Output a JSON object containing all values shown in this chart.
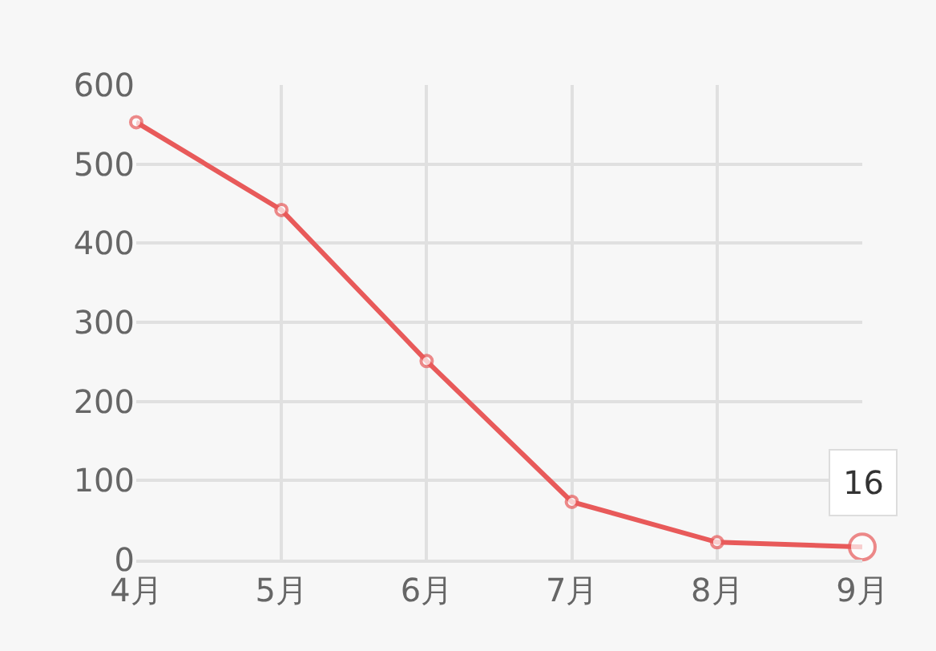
{
  "chart_data": {
    "type": "line",
    "categories": [
      "4月",
      "5月",
      "6月",
      "7月",
      "8月",
      "9月"
    ],
    "series": [
      {
        "color": "#e85a5a",
        "values": [
          553,
          442,
          251,
          73,
          22,
          16
        ],
        "value_labels": [
          null,
          null,
          null,
          null,
          null,
          "16"
        ]
      }
    ],
    "ylim": [
      0,
      600
    ],
    "yticks": [
      0,
      100,
      200,
      300,
      400,
      500,
      600
    ],
    "grid": true,
    "marker": "circle",
    "line_style": "solid",
    "legend": false
  }
}
